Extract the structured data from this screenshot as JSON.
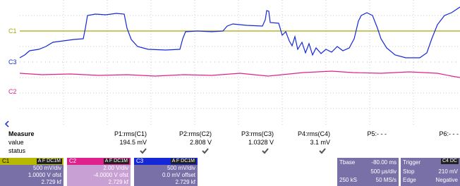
{
  "traces": {
    "c1": "C1",
    "c3": "C3",
    "c2": "C2"
  },
  "measure": {
    "header": "Measure",
    "params": [
      "P1:rms(C1)",
      "P2:rms(C2)",
      "P3:rms(C3)",
      "P4:rms(C4)",
      "P5:- - -",
      "P6:- - -"
    ],
    "value_label": "value",
    "values": [
      "194.5 mV",
      "2.808 V",
      "1.0328 V",
      "3.1 mV"
    ],
    "status_label": "status"
  },
  "panels": {
    "c1": {
      "name": "C1",
      "badge": "A F DC1M",
      "scale": "500 mV/div",
      "offset": "1.0000 V ofst",
      "points": "2.729 kf"
    },
    "c2": {
      "name": "C2",
      "badge": "A F DC1M",
      "scale": "2.00 V/div",
      "offset": "-4.0000 V ofst",
      "points": "2.729 kf"
    },
    "c3": {
      "name": "C3",
      "badge": "A F DC1M",
      "scale": "500 mV/div",
      "offset": "0.0 mV offset",
      "points": "2.729 kf"
    },
    "tbase": {
      "name": "Tbase",
      "delay": "-80.00 ms",
      "scale": "500 µs/div",
      "samples": "250 kS",
      "rate": "50 MS/s"
    },
    "trigger": {
      "name": "Trigger",
      "badge": "C4 DC",
      "mode": "Stop",
      "level": "210 mV",
      "type": "Edge",
      "slope": "Negative"
    }
  }
}
